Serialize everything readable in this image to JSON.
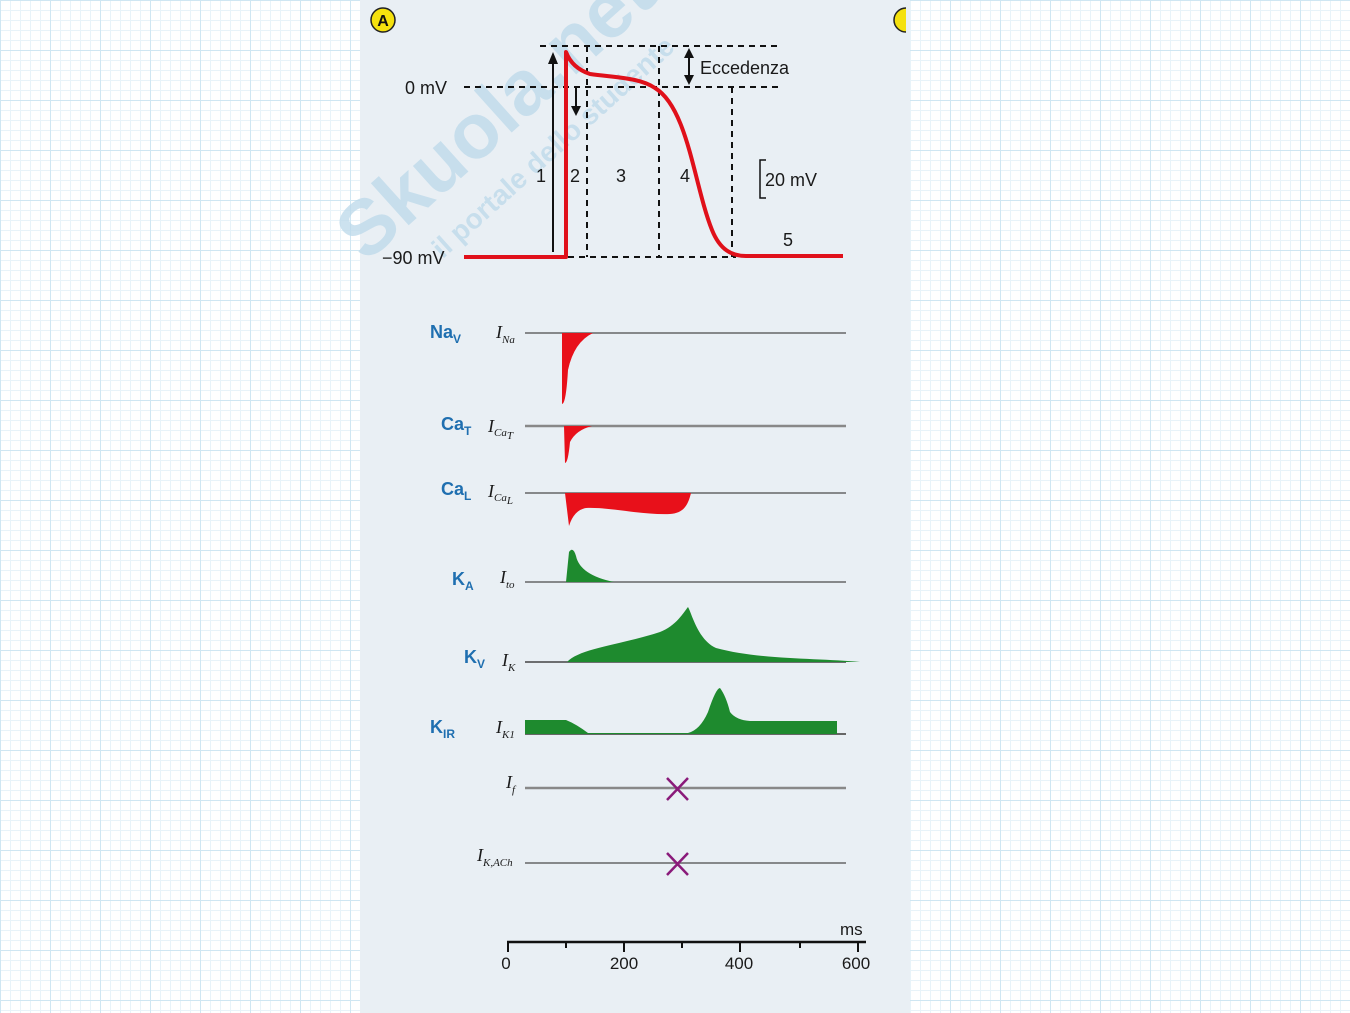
{
  "panel": {
    "badge_a": "A",
    "watermark_main": "Skuola.net",
    "watermark_sub": "il portale dello studente"
  },
  "action_potential": {
    "label_zero": "0 mV",
    "label_rest": "−90 mV",
    "label_overshoot": "Eccedenza",
    "scale_bar": "20 mV",
    "phase_labels": [
      "1",
      "2",
      "3",
      "4",
      "5"
    ],
    "line_color": "#e0101a"
  },
  "currents": [
    {
      "channel": "Na",
      "channel_sub": "V",
      "current": "I",
      "current_sub": "Na",
      "color": "#e8101a"
    },
    {
      "channel": "Ca",
      "channel_sub": "T",
      "current": "I",
      "current_sub": "Ca",
      "current_sub2": "T",
      "color": "#e8101a"
    },
    {
      "channel": "Ca",
      "channel_sub": "L",
      "current": "I",
      "current_sub": "Ca",
      "current_sub2": "L",
      "color": "#e8101a"
    },
    {
      "channel": "K",
      "channel_sub": "A",
      "current": "I",
      "current_sub": "to",
      "color": "#1e8a2e"
    },
    {
      "channel": "K",
      "channel_sub": "V",
      "current": "I",
      "current_sub": "K",
      "color": "#1e8a2e"
    },
    {
      "channel": "K",
      "channel_sub": "IR",
      "current": "I",
      "current_sub": "K1",
      "color": "#1e8a2e"
    },
    {
      "channel": "",
      "channel_sub": "",
      "current": "I",
      "current_sub": "f",
      "color": "#8a1a7a"
    },
    {
      "channel": "",
      "channel_sub": "",
      "current": "I",
      "current_sub": "K,ACh",
      "color": "#8a1a7a"
    }
  ],
  "time_axis": {
    "unit": "ms",
    "ticks": [
      "0",
      "200",
      "400",
      "600"
    ]
  }
}
